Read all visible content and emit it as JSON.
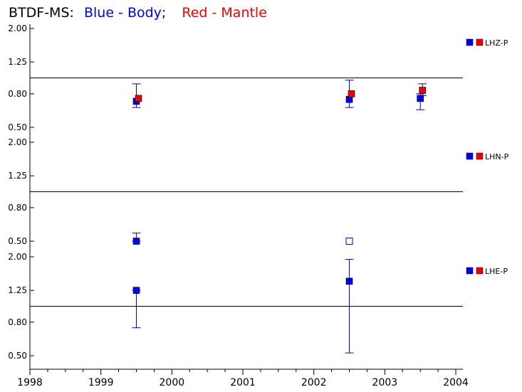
{
  "title": {
    "prefix": "BTDF-MS:",
    "blue_text": "Blue - Body;",
    "red_text": "Red - Mantle"
  },
  "colors": {
    "body": "#0000ee",
    "mantle": "#ee0000",
    "axis": "#000000",
    "error_bar": "#0000cc"
  },
  "chart_data": {
    "type": "scatter",
    "x_axis": {
      "ticks": [
        "1998",
        "1999",
        "2000",
        "2001",
        "2002",
        "2003",
        "2004"
      ],
      "range": [
        1998,
        2004.1
      ]
    },
    "panels": [
      {
        "label": "LHZ-P",
        "y_ticks": [
          "2.00",
          "1.25",
          "0.80",
          "0.50"
        ],
        "y_tick_values": [
          2.0,
          1.25,
          0.8,
          0.5
        ],
        "reference_line": 1.0,
        "points": [
          {
            "x": 1999.5,
            "y": 0.72,
            "series": "body",
            "err_low": 0.66,
            "err_high": 0.92,
            "filled": true
          },
          {
            "x": 1999.53,
            "y": 0.75,
            "series": "mantle",
            "filled": true
          },
          {
            "x": 2002.5,
            "y": 0.74,
            "series": "body",
            "err_low": 0.66,
            "err_high": 0.97,
            "filled": true
          },
          {
            "x": 2002.53,
            "y": 0.8,
            "series": "mantle",
            "filled": true
          },
          {
            "x": 2003.5,
            "y": 0.75,
            "series": "body",
            "err_low": 0.64,
            "err_high": 0.8,
            "filled": true
          },
          {
            "x": 2003.53,
            "y": 0.84,
            "series": "mantle",
            "err_low": 0.78,
            "err_high": 0.92,
            "filled": true
          }
        ]
      },
      {
        "label": "LHN-P",
        "y_ticks": [
          "2.00",
          "1.25",
          "0.80",
          "0.50"
        ],
        "y_tick_values": [
          2.0,
          1.25,
          0.8,
          0.5
        ],
        "reference_line": 1.0,
        "points": [
          {
            "x": 1999.5,
            "y": 0.5,
            "series": "body",
            "err_low": 0.5,
            "err_high": 0.56,
            "filled": true
          },
          {
            "x": 2002.5,
            "y": 0.5,
            "series": "body",
            "filled": false
          }
        ]
      },
      {
        "label": "LHE-P",
        "y_ticks": [
          "2.00",
          "1.25",
          "0.80",
          "0.50"
        ],
        "y_tick_values": [
          2.0,
          1.25,
          0.8,
          0.5
        ],
        "reference_line": 1.0,
        "points": [
          {
            "x": 1999.5,
            "y": 1.25,
            "series": "body",
            "err_low": 0.74,
            "err_high": 1.25,
            "filled": true
          },
          {
            "x": 2002.5,
            "y": 1.42,
            "series": "body",
            "err_low": 0.52,
            "err_high": 1.93,
            "filled": true
          }
        ]
      }
    ]
  }
}
